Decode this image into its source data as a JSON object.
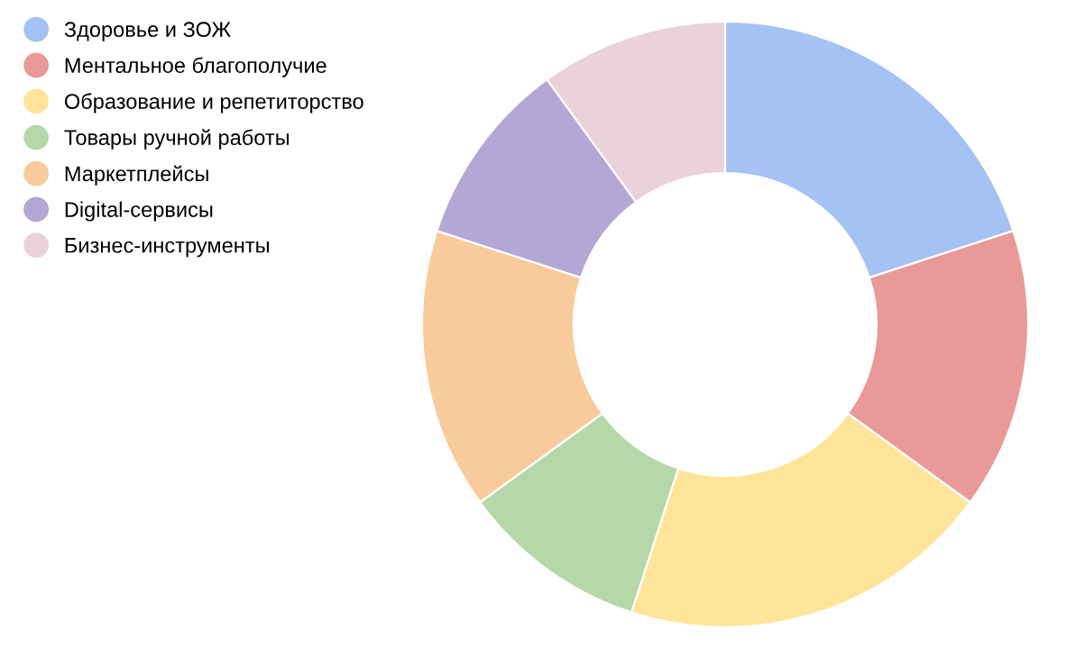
{
  "chart_data": {
    "type": "donut",
    "categories": [
      "Здоровье и ЗОЖ",
      "Ментальное благополучие",
      "Образование и репетиторство",
      "Товары ручной работы",
      "Маркетплейсы",
      "Digital-сервисы",
      "Бизнес-инструменты"
    ],
    "values": [
      20,
      15,
      20,
      10,
      15,
      10,
      10
    ],
    "colors": [
      "#a4c2f4",
      "#ea9999",
      "#ffe599",
      "#b6d7a8",
      "#f9cb9c",
      "#b4a7d6",
      "#ead1dc"
    ],
    "legend": "top left"
  }
}
